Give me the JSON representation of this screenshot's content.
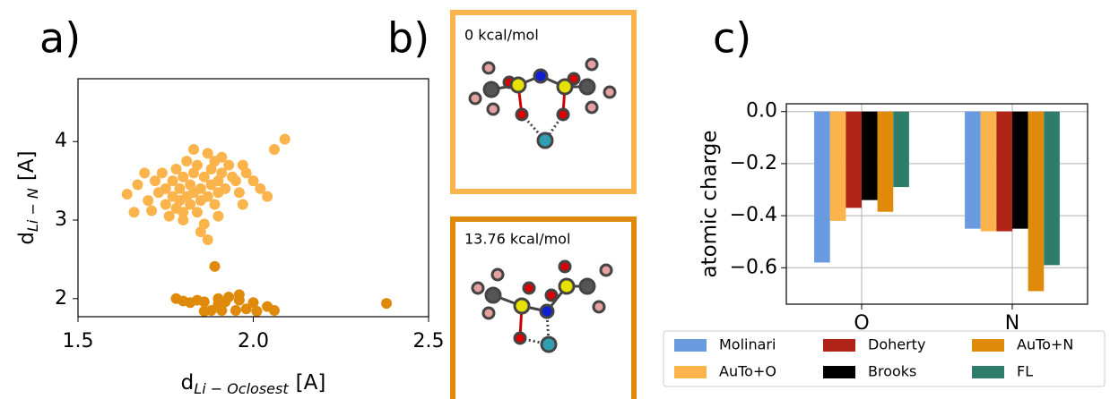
{
  "panel_labels": [
    "a)",
    "b)",
    "c)"
  ],
  "structures": [
    {
      "energy": "0 kcal/mol",
      "color": "#fbb44c"
    },
    {
      "energy": "13.76 kcal/mol",
      "color": "#e08a0b"
    }
  ],
  "chart_data": [
    {
      "type": "scatter",
      "xlabel": {
        "base": "d",
        "subscript": "Li − Oclosest",
        "unit": "[A]"
      },
      "ylabel": {
        "base": "d",
        "subscript": "Li − N",
        "unit": "[A]"
      },
      "xlim": [
        1.5,
        2.5
      ],
      "xticks": [
        1.5,
        {
          "value": 2,
          "label": "2.0"
        },
        2.5
      ],
      "ylim": [
        1.77,
        4.8
      ],
      "yticks": [
        2,
        3,
        4
      ],
      "series": [
        {
          "color": "#fbb44c",
          "x": [
            1.64,
            1.66,
            1.67,
            1.69,
            1.7,
            1.71,
            1.72,
            1.73,
            1.74,
            1.75,
            1.75,
            1.76,
            1.77,
            1.77,
            1.78,
            1.78,
            1.79,
            1.79,
            1.8,
            1.8,
            1.81,
            1.81,
            1.82,
            1.82,
            1.83,
            1.83,
            1.84,
            1.84,
            1.85,
            1.85,
            1.86,
            1.86,
            1.87,
            1.87,
            1.88,
            1.88,
            1.89,
            1.89,
            1.9,
            1.9,
            1.91,
            1.91,
            1.92,
            1.93,
            1.94,
            1.95,
            1.96,
            1.97,
            1.98,
            2.0,
            2.02,
            2.04,
            1.87,
            1.85,
            1.9,
            1.8,
            2.06,
            2.09,
            1.97,
            1.83
          ],
          "y": [
            3.33,
            3.1,
            3.45,
            3.6,
            3.25,
            3.12,
            3.5,
            3.35,
            3.6,
            3.2,
            3.4,
            3.05,
            3.3,
            3.5,
            3.15,
            3.65,
            3.4,
            3.25,
            3.55,
            3.0,
            3.3,
            3.75,
            3.45,
            3.2,
            3.35,
            3.6,
            3.1,
            3.7,
            3.4,
            3.25,
            3.55,
            2.95,
            3.85,
            3.3,
            3.45,
            3.65,
            3.2,
            3.75,
            3.5,
            3.35,
            3.8,
            3.6,
            3.4,
            3.7,
            3.55,
            3.5,
            3.35,
            3.7,
            3.6,
            3.5,
            3.4,
            3.3,
            2.75,
            2.85,
            3.05,
            3.1,
            3.9,
            4.03,
            3.2,
            3.9
          ]
        },
        {
          "color": "#e08a0b",
          "x": [
            1.78,
            1.8,
            1.82,
            1.84,
            1.86,
            1.88,
            1.89,
            1.9,
            1.91,
            1.92,
            1.93,
            1.95,
            1.96,
            1.98,
            2.0,
            2.01,
            2.04,
            2.06,
            1.86,
            1.9,
            2.38,
            1.96
          ],
          "y": [
            2.0,
            1.97,
            1.95,
            1.98,
            1.96,
            1.85,
            2.41,
            2.0,
            1.85,
            1.96,
            2.02,
            1.85,
            1.98,
            1.87,
            1.95,
            1.84,
            1.9,
            1.85,
            1.84,
            1.93,
            1.94,
            2.05
          ]
        }
      ]
    },
    {
      "type": "bar",
      "ylabel": "atomic charge",
      "categories": [
        "O",
        "N"
      ],
      "ylim": [
        -0.74,
        0.03
      ],
      "yticks": [
        {
          "value": 0,
          "label": "0.0"
        },
        {
          "value": -0.2,
          "label": "−0.2"
        },
        {
          "value": -0.4,
          "label": "−0.4"
        },
        {
          "value": -0.6,
          "label": "−0.6"
        }
      ],
      "grid": true,
      "series": [
        {
          "name": "Molinari",
          "color": "#6a9ae0",
          "values": [
            -0.58,
            -0.45
          ]
        },
        {
          "name": "AuTo+O",
          "color": "#fbb44c",
          "values": [
            -0.42,
            -0.46
          ]
        },
        {
          "name": "Doherty",
          "color": "#b02418",
          "values": [
            -0.37,
            -0.46
          ]
        },
        {
          "name": "Brooks",
          "color": "#000000",
          "values": [
            -0.34,
            -0.45
          ]
        },
        {
          "name": "AuTo+N",
          "color": "#e08a0b",
          "values": [
            -0.385,
            -0.69
          ]
        },
        {
          "name": "FL",
          "color": "#2e7d6b",
          "values": [
            -0.29,
            -0.59
          ]
        }
      ]
    }
  ]
}
